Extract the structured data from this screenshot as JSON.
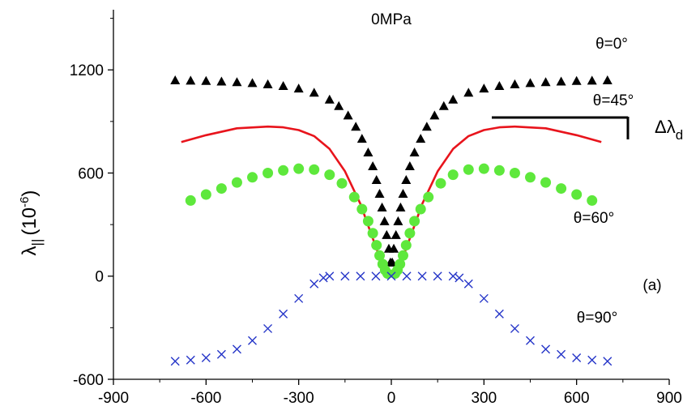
{
  "chart_data": {
    "type": "scatter",
    "title": "0MPa",
    "panel_label": "(a)",
    "xlabel": "",
    "ylabel": {
      "symbol": "λ",
      "subscript": "||",
      "unit_base": "(10",
      "unit_exp": "-6",
      "unit_close": ")"
    },
    "xlim": [
      -900,
      900
    ],
    "ylim": [
      -600,
      1550
    ],
    "xticks": [
      -900,
      -600,
      -300,
      0,
      300,
      600,
      900
    ],
    "yticks": [
      -600,
      0,
      600,
      1200
    ],
    "grid": false,
    "delta_label": {
      "symbol": "Δλ",
      "subscript": "d"
    },
    "series": [
      {
        "name": "θ=0°",
        "marker": "triangle",
        "color": "#000000",
        "x": [
          -700,
          -650,
          -600,
          -550,
          -500,
          -450,
          -400,
          -350,
          -300,
          -250,
          -200,
          -170,
          -140,
          -115,
          -95,
          -75,
          -60,
          -48,
          -38,
          -30,
          -22,
          -15,
          -8,
          -3,
          3,
          8,
          15,
          22,
          30,
          38,
          48,
          60,
          75,
          95,
          115,
          140,
          170,
          200,
          250,
          300,
          350,
          400,
          450,
          500,
          550,
          600,
          650,
          700
        ],
        "y": [
          1140,
          1138,
          1136,
          1133,
          1129,
          1124,
          1117,
          1107,
          1092,
          1068,
          1028,
          990,
          935,
          870,
          800,
          720,
          640,
          560,
          480,
          400,
          320,
          240,
          160,
          80,
          80,
          160,
          240,
          320,
          400,
          480,
          560,
          640,
          720,
          800,
          870,
          935,
          990,
          1028,
          1068,
          1092,
          1107,
          1117,
          1124,
          1129,
          1133,
          1136,
          1138,
          1140
        ]
      },
      {
        "name": "θ=45°",
        "marker": "line",
        "color": "#e8141c",
        "x": [
          -680,
          -600,
          -500,
          -400,
          -350,
          -300,
          -250,
          -200,
          -150,
          -100,
          -70,
          -40,
          -20,
          0,
          20,
          40,
          70,
          100,
          150,
          200,
          250,
          300,
          350,
          400,
          500,
          600,
          680
        ],
        "y": [
          780,
          820,
          860,
          870,
          866,
          850,
          815,
          740,
          610,
          420,
          270,
          120,
          30,
          0,
          30,
          120,
          270,
          420,
          610,
          740,
          815,
          850,
          866,
          870,
          860,
          820,
          780
        ]
      },
      {
        "name": "θ=60°",
        "marker": "circle",
        "color": "#5ee83c",
        "x": [
          -650,
          -600,
          -550,
          -500,
          -450,
          -400,
          -350,
          -300,
          -250,
          -200,
          -160,
          -120,
          -95,
          -75,
          -60,
          -48,
          -38,
          -28,
          -20,
          -12,
          12,
          20,
          28,
          38,
          48,
          60,
          75,
          95,
          120,
          160,
          200,
          250,
          300,
          350,
          400,
          450,
          500,
          550,
          600,
          650
        ],
        "y": [
          440,
          475,
          510,
          545,
          575,
          600,
          615,
          625,
          620,
          590,
          540,
          460,
          390,
          320,
          250,
          180,
          120,
          70,
          35,
          15,
          15,
          35,
          70,
          120,
          180,
          250,
          320,
          390,
          460,
          540,
          590,
          620,
          625,
          615,
          600,
          575,
          545,
          510,
          475,
          440
        ]
      },
      {
        "name": "θ=90°",
        "marker": "x",
        "color": "#2535c8",
        "x": [
          -700,
          -650,
          -600,
          -550,
          -500,
          -450,
          -400,
          -350,
          -300,
          -250,
          -220,
          -200,
          -150,
          -100,
          -50,
          0,
          50,
          100,
          150,
          200,
          220,
          250,
          300,
          350,
          400,
          450,
          500,
          550,
          600,
          650,
          700
        ],
        "y": [
          -495,
          -488,
          -475,
          -455,
          -425,
          -375,
          -305,
          -220,
          -130,
          -45,
          -10,
          0,
          0,
          0,
          0,
          0,
          0,
          0,
          0,
          0,
          -10,
          -45,
          -130,
          -220,
          -305,
          -375,
          -425,
          -455,
          -475,
          -488,
          -495
        ]
      }
    ]
  }
}
